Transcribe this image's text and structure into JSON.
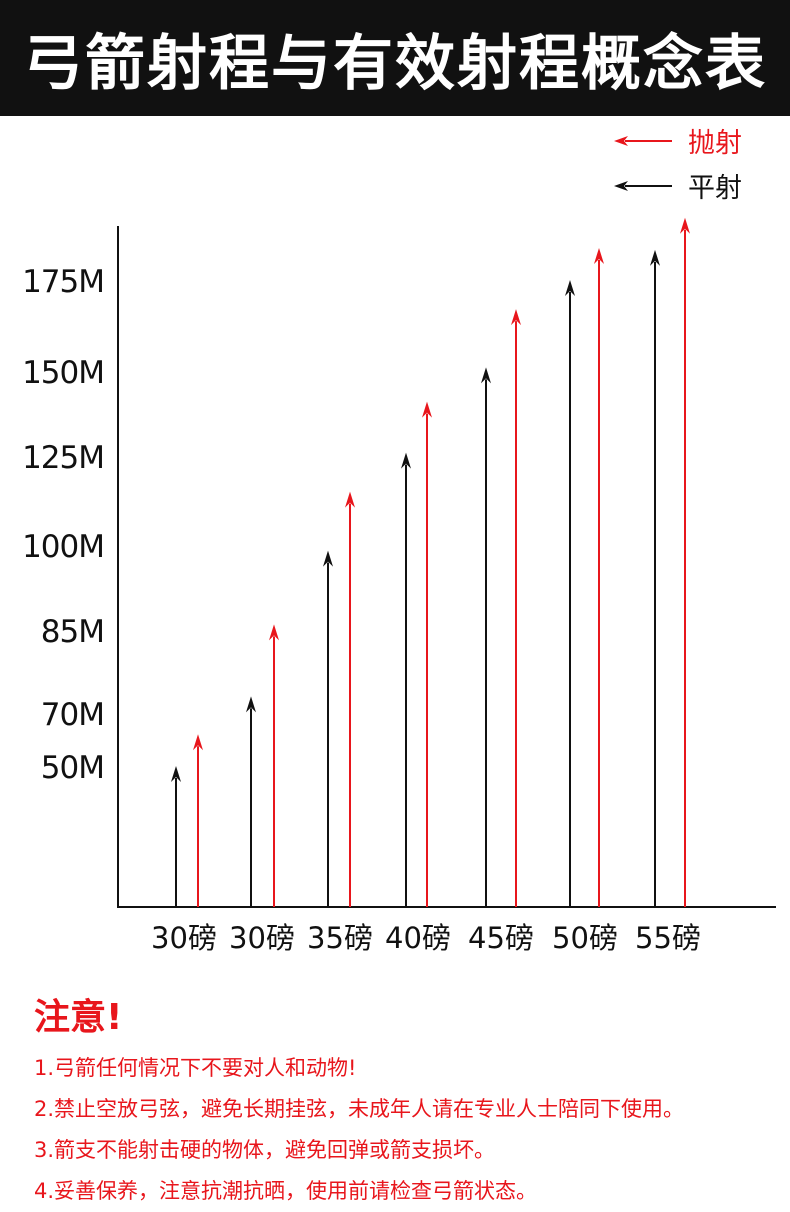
{
  "title": "弓箭射程与有效射程概念表",
  "colors": {
    "lob": "#e8161c",
    "flat": "#111111",
    "title_bg": "#111111",
    "note": "#e8161c"
  },
  "chart_data": {
    "type": "bar",
    "style": "arrows",
    "categories": [
      "30磅",
      "30磅",
      "35磅",
      "40磅",
      "45磅",
      "50磅",
      "55磅"
    ],
    "y_ticks": [
      {
        "label": "175M",
        "value": 175
      },
      {
        "label": "150M",
        "value": 150
      },
      {
        "label": "125M",
        "value": 125
      },
      {
        "label": "100M",
        "value": 100
      },
      {
        "label": "85M",
        "value": 85
      },
      {
        "label": "70M",
        "value": 70
      },
      {
        "label": "50M",
        "value": 50
      }
    ],
    "series": [
      {
        "name": "平射",
        "color": "#111111",
        "values": [
          50,
          73,
          99,
          126,
          151,
          175,
          191
        ]
      },
      {
        "name": "抛射",
        "color": "#e8161c",
        "values": [
          62,
          86,
          115,
          141,
          167,
          192,
          208
        ]
      }
    ],
    "legend": [
      {
        "label": "抛射",
        "color": "#e8161c"
      },
      {
        "label": "平射",
        "color": "#111111"
      }
    ],
    "legend_position": "top-right",
    "grid": false,
    "xlabel": "",
    "ylabel": ""
  },
  "notes": {
    "heading": "注意!",
    "items": [
      "1.弓箭任何情况下不要对人和动物!",
      "2.禁止空放弓弦，避免长期挂弦，未成年人请在专业人士陪同下使用。",
      "3.箭支不能射击硬的物体，避免回弹或箭支损坏。",
      "4.妥善保养，注意抗潮抗晒，使用前请检查弓箭状态。"
    ]
  }
}
